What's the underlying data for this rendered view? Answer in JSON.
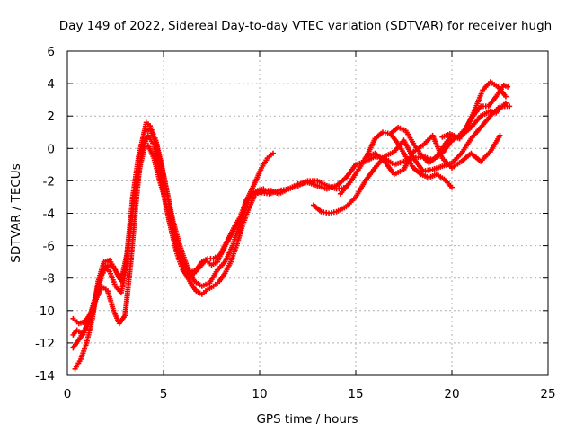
{
  "chart_data": {
    "type": "scatter",
    "title": "Day 149 of 2022, Sidereal Day-to-day VTEC variation (SDTVAR) for receiver hugh",
    "xlabel": "GPS time / hours",
    "ylabel": "SDTVAR / TECUs",
    "xlim": [
      0,
      25
    ],
    "ylim": [
      -14,
      6
    ],
    "xticks": [
      0,
      5,
      10,
      15,
      20,
      25
    ],
    "yticks": [
      -14,
      -12,
      -10,
      -8,
      -6,
      -4,
      -2,
      0,
      2,
      4,
      6
    ],
    "grid": true,
    "legend": "none",
    "marker": "plus",
    "color": "#ff0000",
    "series": [
      {
        "x": [
          0.3,
          0.5,
          0.8,
          1.0,
          1.3,
          1.6,
          1.9,
          2.2,
          2.5,
          2.8,
          3.0,
          3.2,
          3.5,
          3.8,
          4.0,
          4.2,
          4.5,
          4.8,
          5.0,
          5.3,
          5.6,
          6.0,
          6.3,
          6.7,
          7.0,
          7.3,
          7.6,
          8.0,
          8.3,
          8.7,
          9.0,
          9.3,
          9.6,
          10.0,
          10.3,
          10.6,
          11.0,
          11.5,
          12.0,
          12.5,
          13.0,
          13.5,
          14.0,
          14.5
        ],
        "y": [
          -11.5,
          -11.2,
          -11.5,
          -11.0,
          -10.2,
          -8.5,
          -7.3,
          -7.6,
          -8.5,
          -8.9,
          -7.8,
          -5.5,
          -3.0,
          -1.0,
          0.0,
          0.2,
          -0.6,
          -2.0,
          -2.8,
          -4.5,
          -6.0,
          -7.0,
          -7.7,
          -7.5,
          -7.0,
          -6.8,
          -6.8,
          -6.5,
          -5.8,
          -5.0,
          -4.3,
          -3.2,
          -2.9,
          -2.7,
          -2.6,
          -2.6,
          -2.8,
          -2.5,
          -2.3,
          -2.0,
          -2.0,
          -2.3,
          -2.5,
          -2.4
        ]
      },
      {
        "x": [
          0.3,
          0.6,
          0.9,
          1.2,
          1.5,
          1.8,
          2.1,
          2.4,
          2.7,
          3.0,
          3.3,
          3.6,
          3.9,
          4.1,
          4.3,
          4.6,
          4.9,
          5.2,
          5.5,
          5.8,
          6.2,
          6.6,
          7.0,
          7.4,
          7.8,
          8.2,
          8.6,
          9.0,
          9.4,
          9.8,
          10.1,
          10.4,
          10.7
        ],
        "y": [
          -12.3,
          -11.8,
          -11.2,
          -10.3,
          -9.3,
          -8.5,
          -8.8,
          -10.0,
          -10.8,
          -10.3,
          -7.0,
          -3.0,
          0.5,
          1.6,
          1.4,
          0.5,
          -1.0,
          -2.8,
          -4.5,
          -5.8,
          -7.2,
          -8.2,
          -8.5,
          -8.3,
          -7.5,
          -7.0,
          -6.0,
          -4.5,
          -3.0,
          -2.0,
          -1.2,
          -0.6,
          -0.3
        ]
      },
      {
        "x": [
          0.4,
          0.7,
          1.0,
          1.3,
          1.6,
          1.9,
          2.2,
          2.5,
          2.8,
          3.1,
          3.4,
          3.7,
          4.0,
          4.3,
          4.6,
          4.9,
          5.2,
          5.5,
          5.8,
          6.1,
          6.4,
          6.7,
          7.0,
          7.3,
          7.6,
          7.9,
          8.2,
          8.5,
          8.8,
          9.1,
          9.4,
          9.7
        ],
        "y": [
          -13.6,
          -13.0,
          -12.0,
          -10.5,
          -8.2,
          -7.0,
          -6.9,
          -7.5,
          -8.2,
          -6.5,
          -3.0,
          -0.5,
          1.0,
          1.2,
          0.3,
          -1.2,
          -2.8,
          -4.8,
          -6.5,
          -7.6,
          -8.3,
          -8.8,
          -9.0,
          -8.7,
          -8.5,
          -8.2,
          -7.7,
          -7.0,
          -6.0,
          -4.8,
          -3.8,
          -3.0
        ]
      },
      {
        "x": [
          0.3,
          0.6,
          0.9,
          1.2,
          1.5,
          1.8,
          2.1,
          2.4,
          2.7,
          3.0,
          3.3,
          3.6,
          3.9,
          4.2,
          4.5,
          4.8,
          5.1,
          5.4,
          5.7,
          6.0,
          6.3,
          6.6,
          6.9,
          7.2,
          7.5,
          7.8,
          8.1,
          8.4,
          8.7,
          9.0,
          9.3,
          9.6,
          9.9,
          10.2
        ],
        "y": [
          -10.5,
          -10.8,
          -10.7,
          -10.2,
          -9.0,
          -7.8,
          -7.2,
          -7.3,
          -8.0,
          -7.5,
          -5.0,
          -2.0,
          0.0,
          0.8,
          0.2,
          -1.5,
          -3.3,
          -5.0,
          -6.5,
          -7.5,
          -8.0,
          -7.7,
          -7.3,
          -6.9,
          -7.2,
          -7.0,
          -6.2,
          -5.5,
          -4.8,
          -4.2,
          -3.3,
          -2.8,
          -2.6,
          -2.5
        ]
      },
      {
        "x": [
          9.5,
          10.0,
          10.5,
          11.0,
          11.5,
          12.0,
          12.5,
          13.0,
          13.5,
          14.0,
          14.5,
          15.0,
          15.5,
          16.0,
          16.5,
          17.0,
          17.5,
          18.0,
          18.5,
          19.0,
          19.5,
          20.0,
          20.5,
          21.0,
          21.5,
          22.0,
          22.3,
          22.8
        ],
        "y": [
          -3.0,
          -2.7,
          -2.8,
          -2.6,
          -2.5,
          -2.2,
          -2.1,
          -2.3,
          -2.5,
          -2.3,
          -1.8,
          -1.0,
          -0.8,
          -0.5,
          -0.6,
          -1.0,
          -0.8,
          -0.6,
          -0.5,
          -0.7,
          -0.3,
          0.5,
          0.8,
          1.3,
          2.0,
          2.3,
          2.2,
          2.8
        ]
      },
      {
        "x": [
          12.8,
          13.2,
          13.6,
          14.0,
          14.5,
          15.0,
          15.5,
          16.0,
          16.5,
          17.0,
          17.5,
          18.0,
          18.5,
          19.0,
          19.5,
          20.0,
          20.5,
          21.0,
          21.5,
          22.0,
          22.5,
          23.0
        ],
        "y": [
          -3.5,
          -3.9,
          -4.0,
          -3.9,
          -3.6,
          -3.0,
          -2.0,
          -1.2,
          -0.5,
          -0.2,
          0.5,
          -0.6,
          -1.4,
          -1.3,
          -1.1,
          -0.9,
          -0.3,
          0.6,
          1.3,
          2.0,
          2.6,
          2.6
        ]
      },
      {
        "x": [
          14.2,
          14.7,
          15.2,
          15.6,
          16.0,
          16.4,
          16.8,
          17.2,
          17.6,
          18.0,
          18.4,
          18.8,
          19.2,
          19.6,
          20.0
        ],
        "y": [
          -2.8,
          -2.1,
          -1.2,
          -0.4,
          0.6,
          1.0,
          0.9,
          0.3,
          -0.5,
          -1.2,
          -1.6,
          -1.8,
          -1.6,
          -1.9,
          -2.4
        ]
      },
      {
        "x": [
          15.5,
          16.0,
          16.5,
          17.0,
          17.5,
          18.0,
          18.5,
          19.0,
          19.5,
          20.0,
          20.5,
          21.0,
          21.5,
          22.0,
          22.5
        ],
        "y": [
          -0.6,
          -0.3,
          -0.8,
          -1.6,
          -1.3,
          -0.2,
          0.2,
          0.8,
          -0.6,
          -1.2,
          -0.8,
          -0.3,
          -0.8,
          -0.2,
          0.8
        ]
      },
      {
        "x": [
          16.8,
          17.2,
          17.6,
          18.0,
          18.4,
          18.8,
          19.2,
          19.6,
          20.0,
          20.4,
          20.8,
          21.2,
          21.6,
          22.0,
          22.4,
          22.8
        ],
        "y": [
          0.9,
          1.3,
          1.1,
          0.3,
          -0.4,
          -0.9,
          -0.5,
          0.2,
          0.8,
          0.6,
          1.4,
          2.4,
          3.6,
          4.1,
          3.8,
          3.2
        ]
      },
      {
        "x": [
          19.5,
          19.9,
          20.3,
          20.7,
          21.1,
          21.5,
          21.9,
          22.3,
          22.7,
          22.9
        ],
        "y": [
          0.7,
          0.9,
          0.7,
          1.2,
          2.0,
          2.6,
          2.6,
          3.2,
          3.9,
          3.8
        ]
      }
    ]
  }
}
